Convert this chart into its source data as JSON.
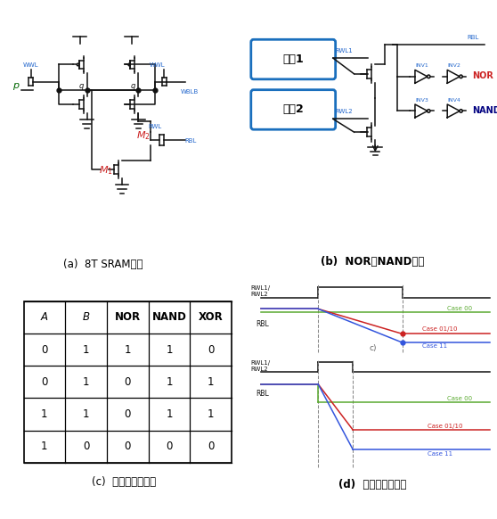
{
  "bg_color": "#ffffff",
  "panel_a_label": "(a)  8T SRAM单元",
  "panel_b_label": "(b)  NOR和NAND操作",
  "panel_c_label": "(c)  布尔运算真值表",
  "panel_d_label": "(d)  布尔运算时序图",
  "table_headers": [
    "A",
    "B",
    "NOR",
    "NAND",
    "XOR"
  ],
  "table_data": [
    [
      "0",
      "1",
      "1",
      "1",
      "0"
    ],
    [
      "0",
      "1",
      "0",
      "1",
      "1"
    ],
    [
      "1",
      "1",
      "0",
      "1",
      "1"
    ],
    [
      "1",
      "0",
      "0",
      "0",
      "0"
    ]
  ],
  "timing_color_green": "#5aaa30",
  "timing_color_red": "#cc2222",
  "timing_color_blue": "#3355dd",
  "timing_color_black": "#111111",
  "nor_label_color": "#cc2222",
  "nand_label_color": "#000080",
  "unit_box_color": "#1a6fbd",
  "m1_color": "#cc2222",
  "m2_color": "#cc2222",
  "label_blue": "#2266cc"
}
